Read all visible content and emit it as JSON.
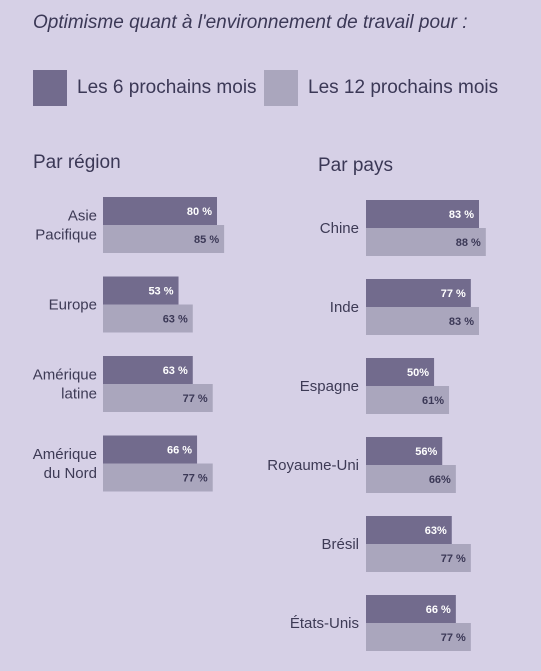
{
  "title": "Optimisme quant à l'environnement de travail pour :",
  "colors": {
    "six_months": "#726b8d",
    "twelve_months": "#aaa6bd",
    "label_dark": "#ffffff",
    "label_light": "#3b3856"
  },
  "legend": [
    {
      "label": "Les 6 prochains mois",
      "color": "#726b8d"
    },
    {
      "label": "Les 12 prochains mois",
      "color": "#aaa6bd"
    }
  ],
  "chart_data": [
    {
      "type": "bar",
      "title": "Par région",
      "categories": [
        [
          "Asie",
          "Pacifique"
        ],
        [
          "Europe"
        ],
        [
          "Amérique",
          "latine"
        ],
        [
          "Amérique",
          "du Nord"
        ]
      ],
      "series": [
        {
          "name": "Les 6 prochains mois",
          "values": [
            80,
            53,
            63,
            66
          ],
          "labels": [
            "80 %",
            "53 %",
            "63 %",
            "66 %"
          ]
        },
        {
          "name": "Les 12 prochains mois",
          "values": [
            85,
            63,
            77,
            77
          ],
          "labels": [
            "85 %",
            "63 %",
            "77 %",
            "77 %"
          ]
        }
      ]
    },
    {
      "type": "bar",
      "title": "Par pays",
      "categories": [
        [
          "Chine"
        ],
        [
          "Inde"
        ],
        [
          "Espagne"
        ],
        [
          "Royaume-Uni"
        ],
        [
          "Brésil"
        ],
        [
          "États-Unis"
        ]
      ],
      "series": [
        {
          "name": "Les 6 prochains mois",
          "values": [
            83,
            77,
            50,
            56,
            63,
            66
          ],
          "labels": [
            "83 %",
            "77 %",
            "50%",
            "56%",
            "63%",
            "66 %"
          ]
        },
        {
          "name": "Les 12 prochains mois",
          "values": [
            88,
            83,
            61,
            66,
            77,
            77
          ],
          "labels": [
            "88 %",
            "83 %",
            "61%",
            "66%",
            "77 %",
            "77 %"
          ]
        }
      ]
    }
  ]
}
